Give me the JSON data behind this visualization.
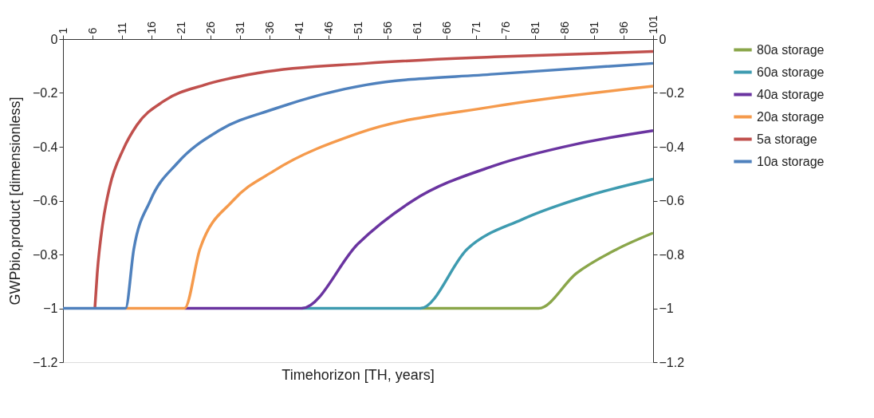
{
  "chart_data": {
    "type": "line",
    "xlabel": "Timehorizon [TH, years]",
    "ylabel": "GWPbio,product [dimensionless]",
    "xlim": [
      1,
      101
    ],
    "xticks": [
      1,
      6,
      11,
      16,
      21,
      26,
      31,
      36,
      41,
      46,
      51,
      56,
      61,
      66,
      71,
      76,
      81,
      86,
      91,
      96,
      101
    ],
    "ylim": [
      -1.2,
      0
    ],
    "yticks": [
      0,
      -0.2,
      -0.4,
      -0.6,
      -0.8,
      -1,
      -1.2
    ],
    "y2lim": [
      -1.2,
      0
    ],
    "y2ticks": [
      0,
      -0.2,
      -0.4,
      -0.6,
      -0.8,
      -1,
      -1.2
    ],
    "grid": false,
    "legend": "right",
    "marker": "none",
    "line_style": "solid",
    "series": [
      {
        "name": "80a storage",
        "color": "#8aa64a",
        "x": [
          61.6,
          81.6,
          88,
          94.9,
          101
        ],
        "values": [
          -1,
          -1,
          -0.87,
          -0.78,
          -0.72
        ]
      },
      {
        "name": "60a storage",
        "color": "#3e9bb0",
        "x": [
          41.5,
          61.6,
          69.5,
          78.8,
          90.3,
          101
        ],
        "values": [
          -1,
          -1,
          -0.78,
          -0.67,
          -0.58,
          -0.52
        ]
      },
      {
        "name": "40a storage",
        "color": "#6a34a0",
        "x": [
          21.6,
          41.5,
          51,
          60.3,
          74.1,
          88,
          101
        ],
        "values": [
          -1,
          -1,
          -0.76,
          -0.6,
          -0.47,
          -0.39,
          -0.34
        ]
      },
      {
        "name": "20a storage",
        "color": "#f59a4c",
        "x": [
          11.6,
          21.6,
          24.2,
          29.8,
          36.7,
          51,
          74.1,
          101
        ],
        "values": [
          -1,
          -1,
          -0.78,
          -0.6,
          -0.49,
          -0.35,
          -0.25,
          -0.175
        ]
      },
      {
        "name": "5a storage",
        "color": "#c0504d",
        "x": [
          6.4,
          6.8,
          7.7,
          8.9,
          11.2,
          13.5,
          18.1,
          25,
          34.3,
          52.4,
          74.1,
          101
        ],
        "values": [
          -1,
          -0.87,
          -0.69,
          -0.55,
          -0.41,
          -0.32,
          -0.23,
          -0.17,
          -0.125,
          -0.09,
          -0.066,
          -0.046
        ]
      },
      {
        "name": "10a storage",
        "color": "#4f81bd",
        "x": [
          1,
          11.6,
          13,
          15.8,
          20.4,
          27.4,
          36.7,
          52.4,
          74.1,
          101
        ],
        "values": [
          -1,
          -1,
          -0.78,
          -0.6,
          -0.46,
          -0.34,
          -0.26,
          -0.17,
          -0.13,
          -0.09
        ]
      }
    ]
  }
}
